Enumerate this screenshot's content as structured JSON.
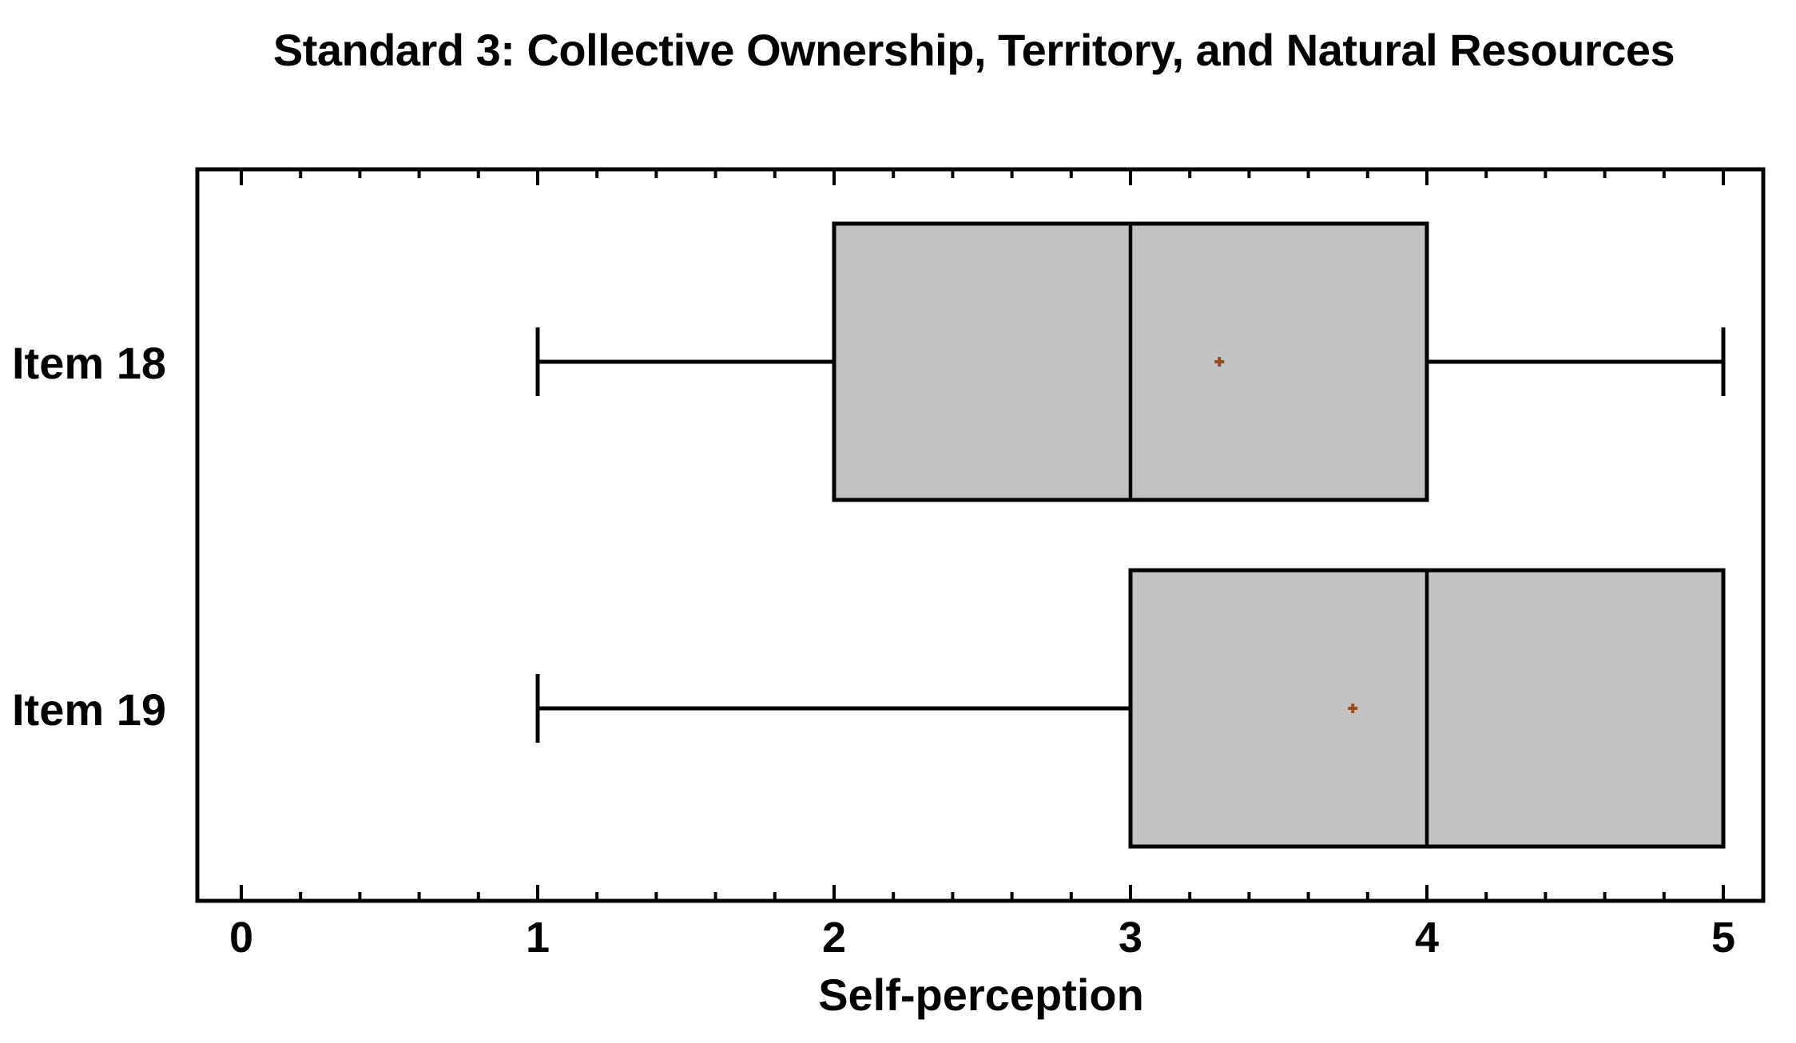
{
  "title": "Standard 3: Collective Ownership, Territory, and Natural Resources",
  "x_axis": {
    "label": "Self-perception",
    "tick_labels": [
      "0",
      "1",
      "2",
      "3",
      "4",
      "5"
    ]
  },
  "y_axis": {
    "category_labels": [
      "Item 18",
      "Item 19"
    ]
  },
  "chart_data": {
    "type": "boxplot",
    "orientation": "horizontal",
    "title": "Standard 3: Collective Ownership, Territory, and Natural Resources",
    "xlabel": "Self-perception",
    "ylabel": "",
    "xlim": [
      0,
      5
    ],
    "x_major_ticks": [
      0,
      1,
      2,
      3,
      4,
      5
    ],
    "x_minor_tick_step": 0.2,
    "grid": false,
    "legend": false,
    "categories": [
      "Item 18",
      "Item 19"
    ],
    "series": [
      {
        "label": "Item 18",
        "whisker_low": 1,
        "q1": 2,
        "median": 3,
        "q3": 4,
        "whisker_high": 5,
        "mean": 3.3
      },
      {
        "label": "Item 19",
        "whisker_low": 1,
        "q1": 3,
        "median": 4,
        "q3": 5,
        "whisker_high": 5,
        "mean": 3.75
      }
    ],
    "colors": {
      "box_fill": "#C2C2C2",
      "line": "#000000",
      "mean_marker": "#9B4A20",
      "background": "#FFFFFF"
    },
    "mean_marker_shape": "plus"
  }
}
